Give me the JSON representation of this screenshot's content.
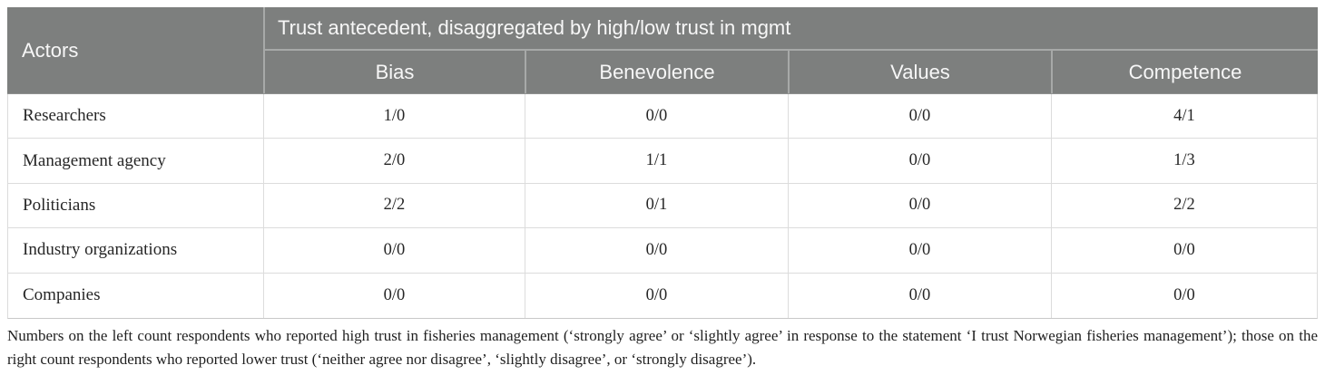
{
  "table": {
    "header": {
      "actors_label": "Actors",
      "group_label": "Trust antecedent, disaggregated by high/low trust in mgmt",
      "columns": [
        "Bias",
        "Benevolence",
        "Values",
        "Competence"
      ]
    },
    "rows": [
      {
        "actor": "Researchers",
        "cells": [
          "1/0",
          "0/0",
          "0/0",
          "4/1"
        ]
      },
      {
        "actor": "Management agency",
        "cells": [
          "2/0",
          "1/1",
          "0/0",
          "1/3"
        ]
      },
      {
        "actor": "Politicians",
        "cells": [
          "2/2",
          "0/1",
          "0/0",
          "2/2"
        ]
      },
      {
        "actor": "Industry organizations",
        "cells": [
          "0/0",
          "0/0",
          "0/0",
          "0/0"
        ]
      },
      {
        "actor": "Companies",
        "cells": [
          "0/0",
          "0/0",
          "0/0",
          "0/0"
        ]
      }
    ]
  },
  "footnote": {
    "text": "Numbers on the left count respondents who reported high trust in fisheries management (‘strongly agree’ or ‘slightly agree’ in response to the statement ‘I trust Norwegian fisheries management’); those on the right count respondents who reported lower trust (‘neither agree nor disagree’, ‘slightly disagree’, or ‘strongly disagree’)."
  },
  "colors": {
    "header_bg": "#7d7f7e",
    "header_divider": "#a7a9a8",
    "header_text": "#f7f7f7",
    "row_border": "#dcdcdc",
    "outer_border": "#c9c9c9",
    "body_text": "#262626",
    "note_text": "#1f1f1f"
  }
}
